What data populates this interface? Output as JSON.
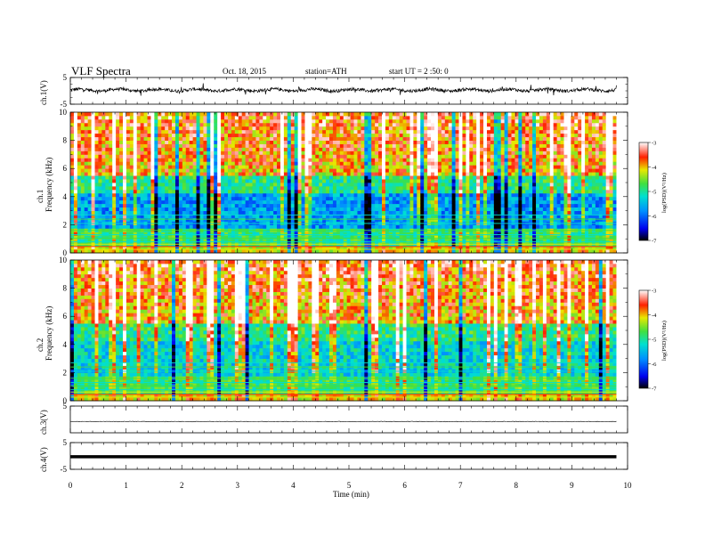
{
  "header": {
    "title": "VLF Spectra",
    "date": "Oct. 18, 2015",
    "station": "station=ATH",
    "start": "start UT = 2 :50: 0"
  },
  "colors": {
    "background": "#ffffff",
    "axes": "#000000"
  },
  "chart_data": [
    {
      "type": "line",
      "panel": "ch1-waveform",
      "ylabel": "ch.1(V)",
      "ylim": [
        -5,
        5
      ],
      "yticks": [
        "5",
        "-5"
      ],
      "xlim": [
        0,
        10
      ],
      "data_end_min": 9.8,
      "series": [
        {
          "values_approx": "noisy waveform around +0.3 V with amplitude about ±1 V"
        }
      ]
    },
    {
      "type": "heatmap",
      "panel": "ch1-spectrogram",
      "ylabel": "ch.1 Frequency (kHz)",
      "ylim": [
        0,
        10
      ],
      "yticks": [
        "0",
        "2",
        "4",
        "6",
        "8",
        "10"
      ],
      "xlim": [
        0,
        10
      ],
      "colorbar": {
        "label": "log(PSD) (V²/Hz)",
        "range": [
          -7,
          -3
        ],
        "ticks": [
          "-3",
          "-4",
          "-5",
          "-6",
          "-7"
        ]
      }
    },
    {
      "type": "heatmap",
      "panel": "ch2-spectrogram",
      "ylabel": "ch.2 Frequency (kHz)",
      "ylim": [
        0,
        10
      ],
      "yticks": [
        "0",
        "2",
        "4",
        "6",
        "8",
        "10"
      ],
      "xlim": [
        0,
        10
      ],
      "colorbar": {
        "label": "log(PSD) (V²/Hz)",
        "range": [
          -7,
          -3
        ],
        "ticks": [
          "-3",
          "-4",
          "-5",
          "-6",
          "-7"
        ]
      }
    },
    {
      "type": "line",
      "panel": "ch3-waveform",
      "ylabel": "ch.3(V)",
      "ylim": [
        -5,
        5
      ],
      "yticks": [
        "5"
      ],
      "xlim": [
        0,
        10
      ],
      "series": [
        {
          "values_approx": "flat trace near 0 V"
        }
      ]
    },
    {
      "type": "line",
      "panel": "ch4-waveform",
      "ylabel": "ch.4(V)",
      "ylim": [
        -5,
        5
      ],
      "yticks": [
        "5",
        "-5"
      ],
      "xlim": [
        0,
        10
      ],
      "series": [
        {
          "values_approx": "thick flat trace near 0 V"
        }
      ]
    }
  ],
  "x_axis": {
    "label": "Time (min)",
    "ticks": [
      "0",
      "1",
      "2",
      "3",
      "4",
      "5",
      "6",
      "7",
      "8",
      "9",
      "10"
    ]
  },
  "colorbar_labels": {
    "label_text": "log(PSD)(V²/Hz)"
  }
}
